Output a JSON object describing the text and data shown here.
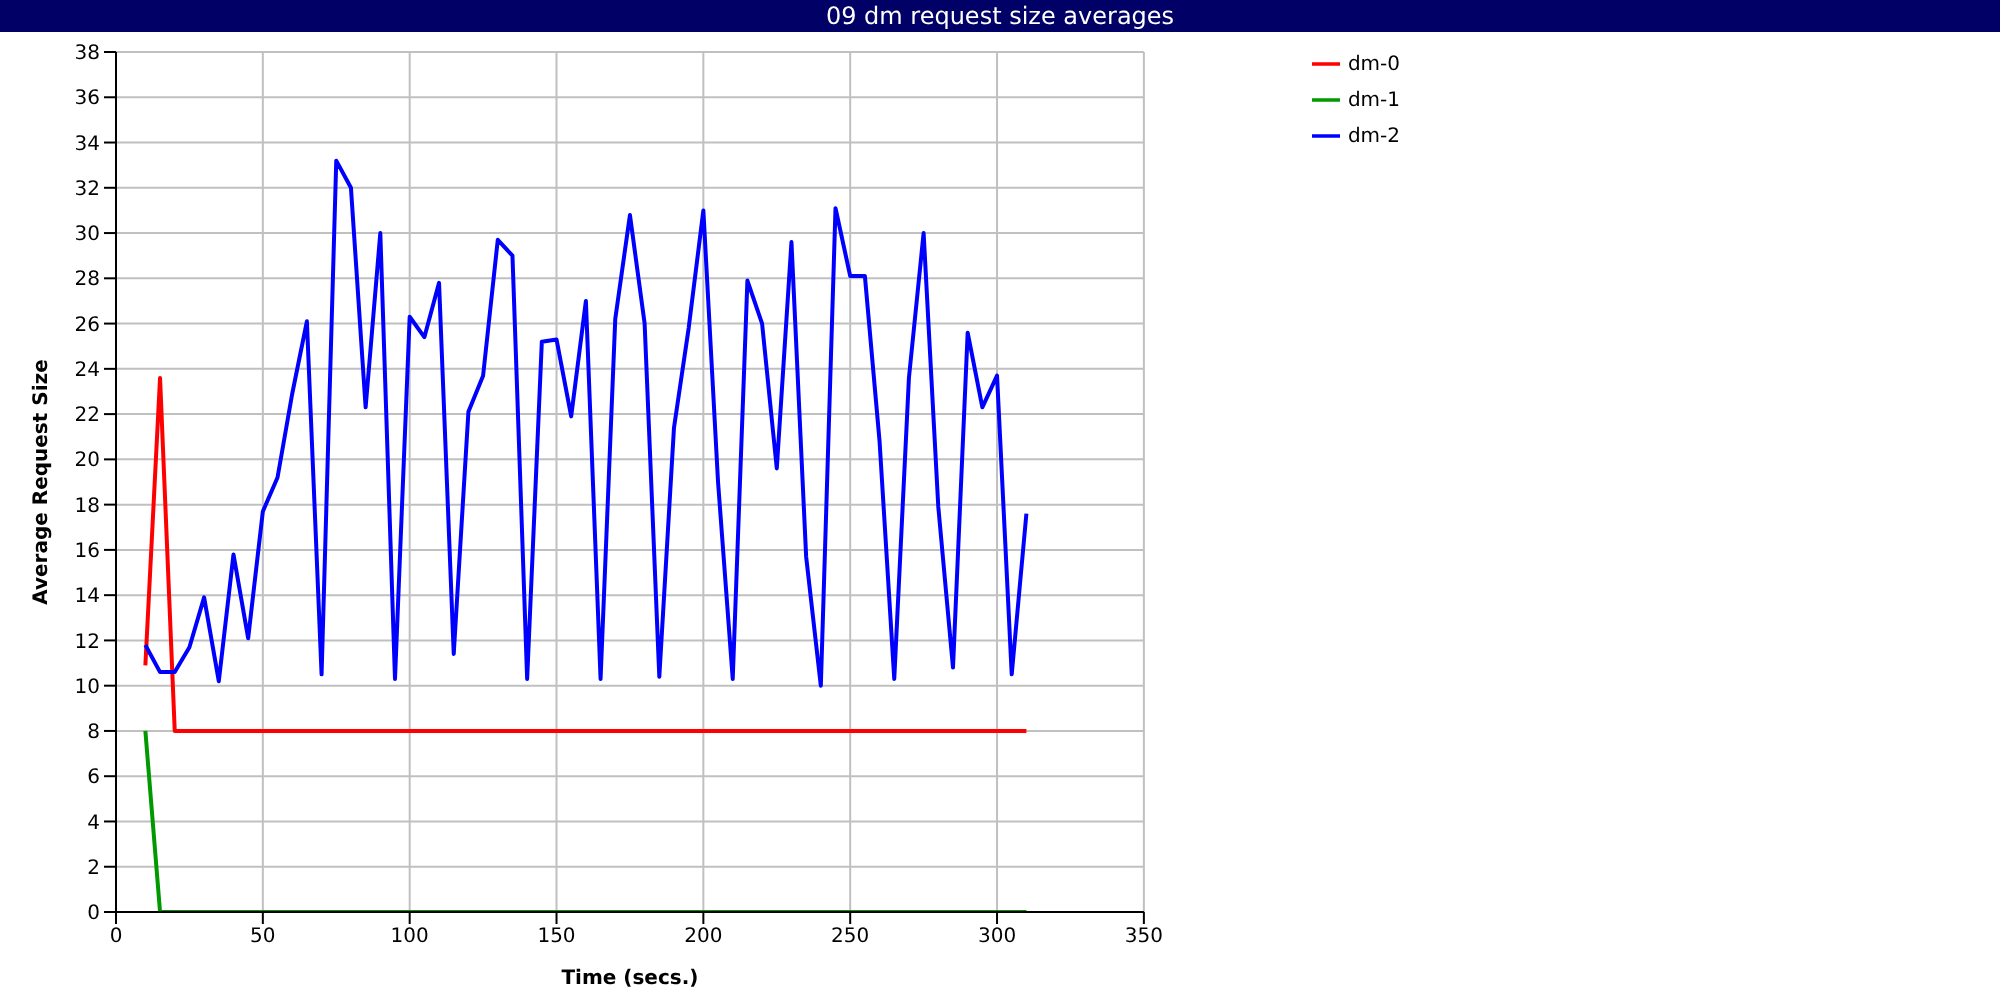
{
  "chart_data": {
    "type": "line",
    "title": "09 dm request size averages",
    "xlabel": "Time (secs.)",
    "ylabel": "Average Request Size",
    "x": [
      10,
      15,
      20,
      25,
      30,
      35,
      40,
      45,
      50,
      55,
      60,
      65,
      70,
      75,
      80,
      85,
      90,
      95,
      100,
      105,
      110,
      115,
      120,
      125,
      130,
      135,
      140,
      145,
      150,
      155,
      160,
      165,
      170,
      175,
      180,
      185,
      190,
      195,
      200,
      205,
      210,
      215,
      220,
      225,
      230,
      235,
      240,
      245,
      250,
      255,
      260,
      265,
      270,
      275,
      280,
      285,
      290,
      295,
      300,
      305,
      310
    ],
    "series": [
      {
        "name": "dm-0",
        "color": "#ff0000",
        "values": [
          10.9,
          23.6,
          8,
          8,
          8,
          8,
          8,
          8,
          8,
          8,
          8,
          8,
          8,
          8,
          8,
          8,
          8,
          8,
          8,
          8,
          8,
          8,
          8,
          8,
          8,
          8,
          8,
          8,
          8,
          8,
          8,
          8,
          8,
          8,
          8,
          8,
          8,
          8,
          8,
          8,
          8,
          8,
          8,
          8,
          8,
          8,
          8,
          8,
          8,
          8,
          8,
          8,
          8,
          8,
          8,
          8,
          8,
          8,
          8,
          8,
          8
        ]
      },
      {
        "name": "dm-1",
        "color": "#009900",
        "values": [
          8,
          0,
          0,
          0,
          0,
          0,
          0,
          0,
          0,
          0,
          0,
          0,
          0,
          0,
          0,
          0,
          0,
          0,
          0,
          0,
          0,
          0,
          0,
          0,
          0,
          0,
          0,
          0,
          0,
          0,
          0,
          0,
          0,
          0,
          0,
          0,
          0,
          0,
          0,
          0,
          0,
          0,
          0,
          0,
          0,
          0,
          0,
          0,
          0,
          0,
          0,
          0,
          0,
          0,
          0,
          0,
          0,
          0,
          0,
          0,
          0
        ]
      },
      {
        "name": "dm-2",
        "color": "#0000ff",
        "values": [
          11.8,
          10.6,
          10.6,
          11.7,
          13.9,
          10.2,
          15.8,
          12.1,
          17.7,
          19.2,
          22.9,
          26.1,
          10.5,
          33.2,
          32,
          22.3,
          30,
          10.3,
          26.3,
          25.4,
          27.8,
          11.4,
          22.1,
          23.7,
          29.7,
          29,
          10.3,
          25.2,
          25.3,
          21.9,
          27,
          10.3,
          26.2,
          30.8,
          26,
          10.4,
          21.4,
          25.8,
          31,
          19,
          10.3,
          27.9,
          26,
          19.6,
          29.6,
          15.7,
          10,
          31.1,
          28.1,
          28.1,
          20.8,
          10.3,
          23.6,
          30,
          17.9,
          10.8,
          25.6,
          22.3,
          23.7,
          10.5,
          17.6
        ]
      }
    ],
    "xlim": [
      0,
      350
    ],
    "xticks": [
      0,
      50,
      100,
      150,
      200,
      250,
      300,
      350
    ],
    "ylim": [
      0,
      38
    ],
    "yticks": [
      0,
      2,
      4,
      6,
      8,
      10,
      12,
      14,
      16,
      18,
      20,
      22,
      24,
      26,
      28,
      30,
      32,
      34,
      36,
      38
    ],
    "grid": true,
    "legend": "top right",
    "marker": "none",
    "line_style": "solid"
  }
}
